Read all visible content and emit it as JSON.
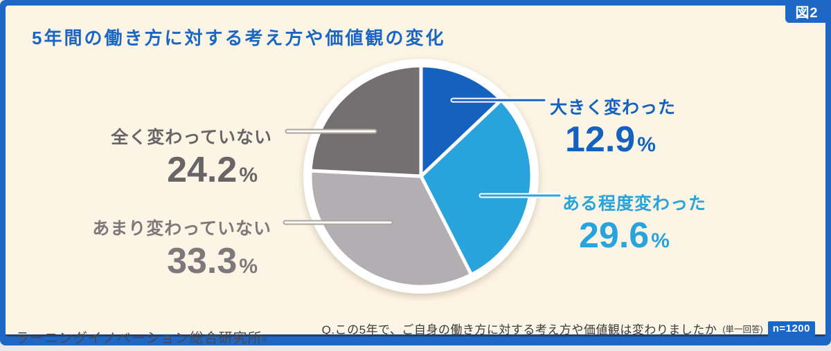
{
  "figure_tag": "図2",
  "header": {
    "title": "5年間の働き方に対する考え方や価値観の変化"
  },
  "chart_data": {
    "type": "pie",
    "title": "5年間の働き方に対する考え方や価値観の変化",
    "start_angle_deg": 0,
    "direction": "clockwise",
    "total": 100,
    "value_suffix": "%",
    "legend_position": "callouts",
    "segments": [
      {
        "label": "大きく変わった",
        "value": 12.9,
        "color": "#1462BD",
        "label_color": "#1462BD"
      },
      {
        "label": "ある程度変わった",
        "value": 29.6,
        "color": "#28A3DB",
        "label_color": "#28A3DB"
      },
      {
        "label": "あまり変わっていない",
        "value": 33.3,
        "color": "#B3AEB2",
        "label_color": "#7E787B"
      },
      {
        "label": "全く変わっていない",
        "value": 24.2,
        "color": "#746F71",
        "label_color": "#696466"
      }
    ]
  },
  "footer": {
    "source": "ラーニングイノベーション総合研究所",
    "source_mark": "®",
    "question": "Q.この5年で、ご自身の働き方に対する考え方や価値観は変わりましたか",
    "question_note": "(単一回答)",
    "sample_size": "n=1200"
  },
  "colors": {
    "frame": "#1E67C4",
    "background": "#FCF4E4",
    "accent_navy": "#21406F",
    "title": "#1A66C2"
  }
}
